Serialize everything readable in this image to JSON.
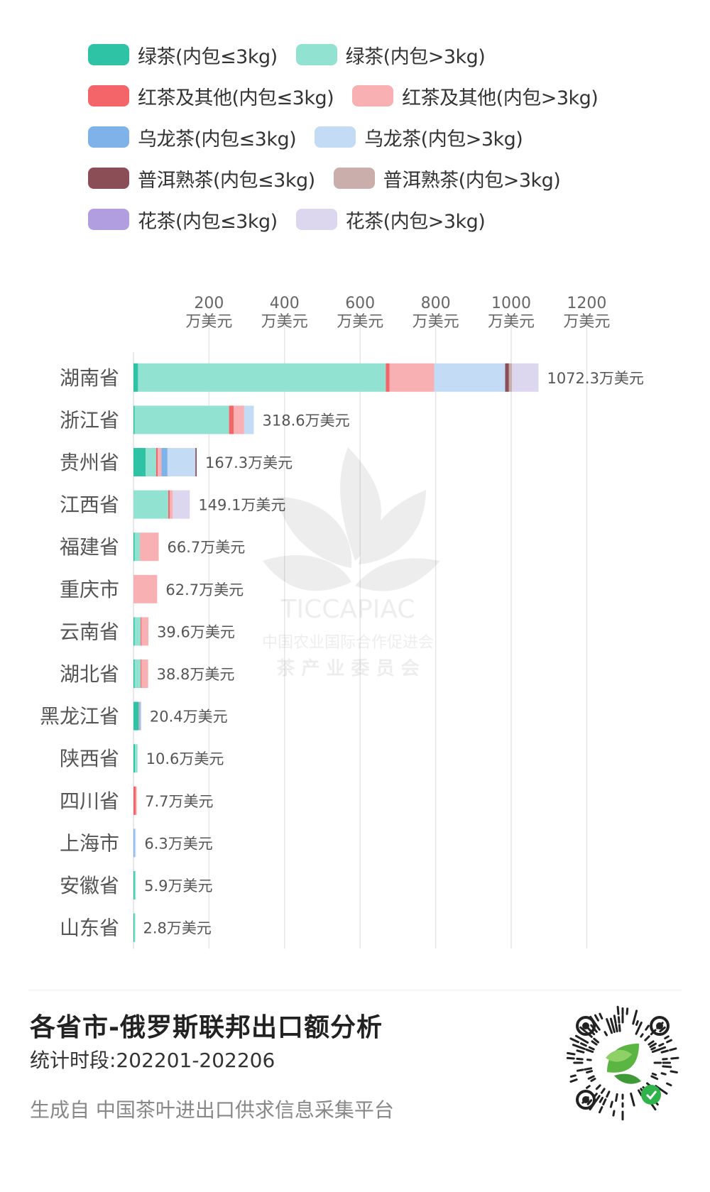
{
  "legend": {
    "items": [
      {
        "label": "绿茶(内包≤3kg)",
        "color": "#2fc3a6"
      },
      {
        "label": "绿茶(内包>3kg)",
        "color": "#92e2d2"
      },
      {
        "label": "红茶及其他(内包≤3kg)",
        "color": "#f4656a"
      },
      {
        "label": "红茶及其他(内包>3kg)",
        "color": "#f9b0b3"
      },
      {
        "label": "乌龙茶(内包≤3kg)",
        "color": "#7eb2e8"
      },
      {
        "label": "乌龙茶(内包>3kg)",
        "color": "#c3dbf5"
      },
      {
        "label": "普洱熟茶(内包≤3kg)",
        "color": "#8b4d56"
      },
      {
        "label": "普洱熟茶(内包>3kg)",
        "color": "#c9aeac"
      },
      {
        "label": "花茶(内包≤3kg)",
        "color": "#b19ee0"
      },
      {
        "label": "花茶(内包>3kg)",
        "color": "#dcd6ee"
      }
    ]
  },
  "chart_data": {
    "type": "bar",
    "orientation": "horizontal",
    "stacked": true,
    "unit": "万美元",
    "x_ticks": [
      200,
      400,
      600,
      800,
      1000,
      1200
    ],
    "x_tick_labels": [
      "200\n万美元",
      "400\n万美元",
      "600\n万美元",
      "800\n万美元",
      "1000\n万美元",
      "1200\n万美元"
    ],
    "xlim": [
      0,
      1300
    ],
    "grid": true,
    "legend_position": "top",
    "categories": [
      "湖南省",
      "浙江省",
      "贵州省",
      "江西省",
      "福建省",
      "重庆市",
      "云南省",
      "湖北省",
      "黑龙江省",
      "陕西省",
      "四川省",
      "上海市",
      "安徽省",
      "山东省"
    ],
    "totals": [
      1072.3,
      318.6,
      167.3,
      149.1,
      66.7,
      62.7,
      39.6,
      38.8,
      20.4,
      10.6,
      7.7,
      6.3,
      5.9,
      2.8
    ],
    "total_labels": [
      "1072.3万美元",
      "318.6万美元",
      "167.3万美元",
      "149.1万美元",
      "66.7万美元",
      "62.7万美元",
      "39.6万美元",
      "38.8万美元",
      "20.4万美元",
      "10.6万美元",
      "7.7万美元",
      "6.3万美元",
      "5.9万美元",
      "2.8万美元"
    ],
    "series": [
      {
        "name": "绿茶(内包≤3kg)",
        "values": [
          12,
          3,
          32,
          0,
          3,
          0,
          3,
          3,
          14,
          4,
          0,
          0,
          3,
          2
        ]
      },
      {
        "name": "绿茶(内包>3kg)",
        "values": [
          656,
          250,
          28,
          92,
          14,
          0,
          16,
          16,
          0,
          6.6,
          0,
          0,
          2.9,
          0.8
        ]
      },
      {
        "name": "红茶及其他(内包≤3kg)",
        "values": [
          10,
          12,
          4,
          4,
          0,
          0,
          2,
          2,
          0,
          0,
          6,
          0,
          0,
          0
        ]
      },
      {
        "name": "红茶及其他(内包>3kg)",
        "values": [
          118,
          28,
          10,
          8,
          49.7,
          62.7,
          18.6,
          17.8,
          2,
          0,
          1.7,
          0,
          0,
          0
        ]
      },
      {
        "name": "乌龙茶(内包≤3kg)",
        "values": [
          0,
          0,
          16,
          0,
          0,
          0,
          0,
          0,
          2,
          0,
          0,
          3,
          0,
          0
        ]
      },
      {
        "name": "乌龙茶(内包>3kg)",
        "values": [
          188,
          25.6,
          74,
          0,
          0,
          0,
          0,
          0,
          2.4,
          0,
          0,
          3.3,
          0,
          0
        ]
      },
      {
        "name": "普洱熟茶(内包≤3kg)",
        "values": [
          10,
          0,
          3.3,
          0,
          0,
          0,
          0,
          0,
          0,
          0,
          0,
          0,
          0,
          0
        ]
      },
      {
        "name": "普洱熟茶(内包>3kg)",
        "values": [
          8,
          0,
          0,
          0,
          0,
          0,
          0,
          0,
          0,
          0,
          0,
          0,
          0,
          0
        ]
      },
      {
        "name": "花茶(内包≤3kg)",
        "values": [
          0,
          0,
          0,
          0,
          0,
          0,
          0,
          0,
          0,
          0,
          0,
          0,
          0,
          0
        ]
      },
      {
        "name": "花茶(内包>3kg)",
        "values": [
          70.3,
          0,
          0,
          45.1,
          0,
          0,
          0,
          0,
          0,
          0,
          0,
          0,
          0,
          0
        ]
      }
    ]
  },
  "watermark": {
    "line1": "TICCAPIAC",
    "line2": "中国农业国际合作促进会",
    "line3": "茶 产 业 委 员 会"
  },
  "footer": {
    "title": "各省市-俄罗斯联邦出口额分析",
    "period": "统计时段:202201-202206",
    "source": "生成自  中国茶叶进出口供求信息采集平台"
  }
}
